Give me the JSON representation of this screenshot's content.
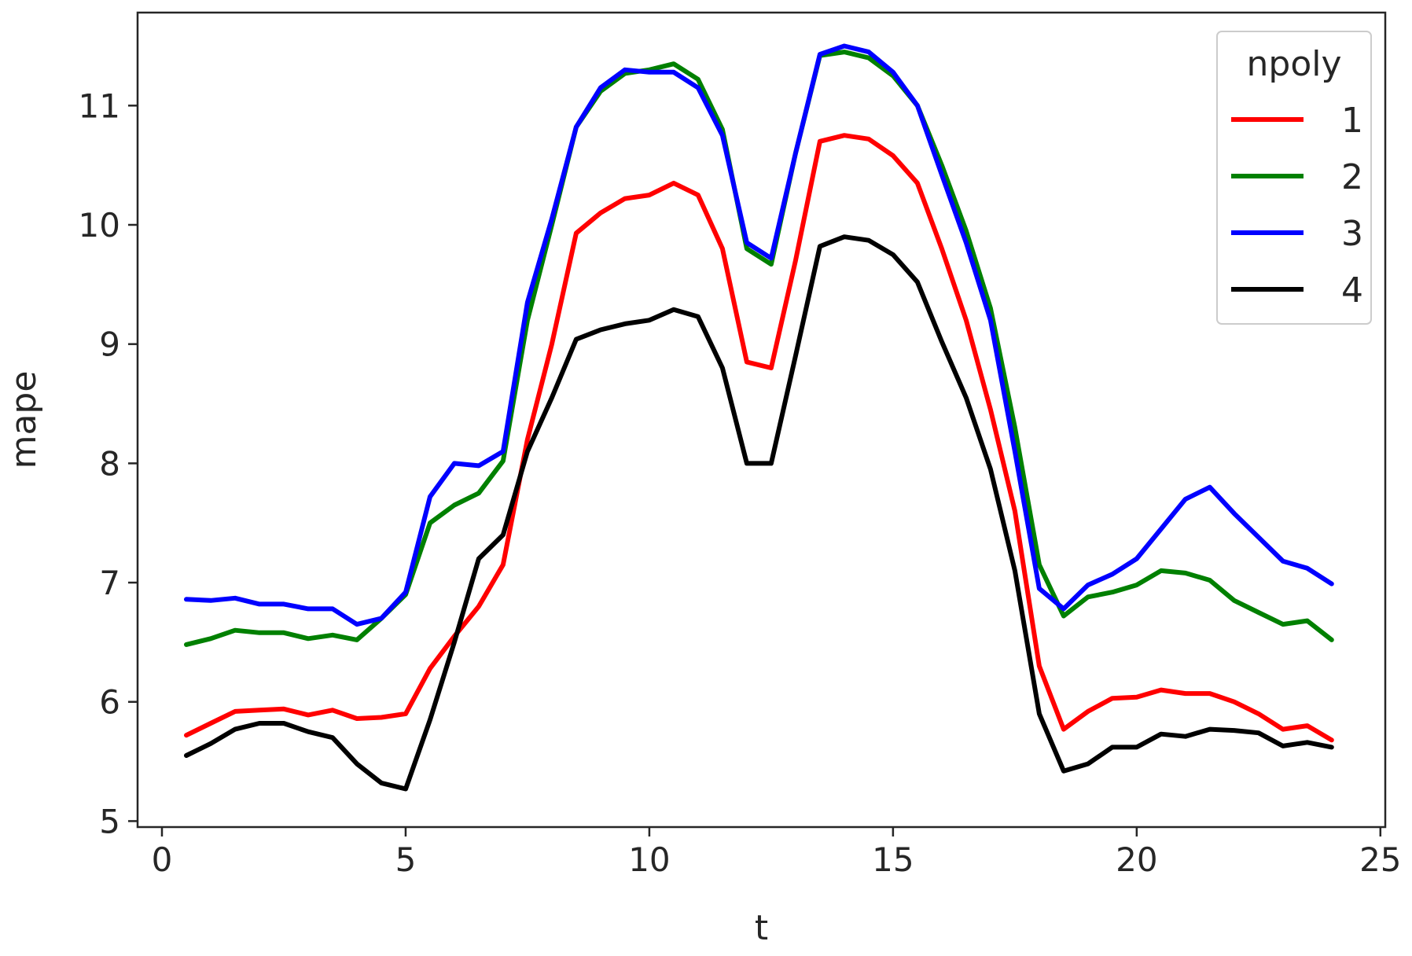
{
  "chart_data": {
    "type": "line",
    "title": "",
    "xlabel": "t",
    "ylabel": "mape",
    "xlim": [
      -0.5,
      25.1
    ],
    "ylim": [
      4.95,
      11.78
    ],
    "x_ticks": [
      0,
      5,
      10,
      15,
      20,
      25
    ],
    "y_ticks": [
      5,
      6,
      7,
      8,
      9,
      10,
      11
    ],
    "grid": false,
    "legend": {
      "title": "npoly",
      "placement": "top-right"
    },
    "x": [
      0.5,
      1,
      1.5,
      2,
      2.5,
      3,
      3.5,
      4,
      4.5,
      5,
      5.5,
      6,
      6.5,
      7,
      7.5,
      8,
      8.5,
      9,
      9.5,
      10,
      10.5,
      11,
      11.5,
      12,
      12.5,
      13,
      13.5,
      14,
      14.5,
      15,
      15.5,
      16,
      16.5,
      17,
      17.5,
      18,
      18.5,
      19,
      19.5,
      20,
      20.5,
      21,
      21.5,
      22,
      22.5,
      23,
      23.5,
      24
    ],
    "series": [
      {
        "name": "1",
        "color": "#ff0000",
        "values": [
          5.72,
          5.82,
          5.92,
          5.93,
          5.94,
          5.89,
          5.93,
          5.86,
          5.87,
          5.9,
          6.28,
          6.55,
          6.8,
          7.15,
          8.2,
          9.0,
          9.93,
          10.1,
          10.22,
          10.25,
          10.35,
          10.25,
          9.8,
          8.85,
          8.8,
          9.7,
          10.7,
          10.75,
          10.72,
          10.58,
          10.35,
          9.8,
          9.2,
          8.45,
          7.6,
          6.3,
          5.77,
          5.92,
          6.03,
          6.04,
          6.1,
          6.07,
          6.07,
          6.0,
          5.9,
          5.77,
          5.8,
          5.68
        ]
      },
      {
        "name": "2",
        "color": "#008000",
        "values": [
          6.48,
          6.53,
          6.6,
          6.58,
          6.58,
          6.53,
          6.56,
          6.52,
          6.7,
          6.9,
          7.5,
          7.65,
          7.75,
          8.02,
          9.2,
          10.0,
          10.82,
          11.12,
          11.27,
          11.3,
          11.35,
          11.22,
          10.8,
          9.8,
          9.67,
          10.6,
          11.42,
          11.45,
          11.4,
          11.25,
          11.0,
          10.5,
          9.95,
          9.3,
          8.3,
          7.15,
          6.72,
          6.88,
          6.92,
          6.98,
          7.1,
          7.08,
          7.02,
          6.85,
          6.75,
          6.65,
          6.68,
          6.52
        ]
      },
      {
        "name": "3",
        "color": "#0000ff",
        "values": [
          6.86,
          6.85,
          6.87,
          6.82,
          6.82,
          6.78,
          6.78,
          6.65,
          6.7,
          6.92,
          7.72,
          8.0,
          7.98,
          8.1,
          9.35,
          10.05,
          10.82,
          11.15,
          11.3,
          11.28,
          11.28,
          11.15,
          10.75,
          9.85,
          9.72,
          10.6,
          11.43,
          11.5,
          11.45,
          11.28,
          11.0,
          10.42,
          9.85,
          9.2,
          8.1,
          6.95,
          6.78,
          6.98,
          7.07,
          7.2,
          7.45,
          7.7,
          7.8,
          7.58,
          7.38,
          7.18,
          7.12,
          6.99
        ]
      },
      {
        "name": "4",
        "color": "#000000",
        "values": [
          5.55,
          5.65,
          5.77,
          5.82,
          5.82,
          5.75,
          5.7,
          5.48,
          5.32,
          5.27,
          5.85,
          6.5,
          7.2,
          7.4,
          8.1,
          8.55,
          9.04,
          9.12,
          9.17,
          9.2,
          9.29,
          9.23,
          8.8,
          8.0,
          8.0,
          8.9,
          9.82,
          9.9,
          9.87,
          9.75,
          9.52,
          9.02,
          8.55,
          7.95,
          7.1,
          5.9,
          5.42,
          5.48,
          5.62,
          5.62,
          5.73,
          5.71,
          5.77,
          5.76,
          5.74,
          5.63,
          5.66,
          5.62
        ]
      }
    ]
  }
}
